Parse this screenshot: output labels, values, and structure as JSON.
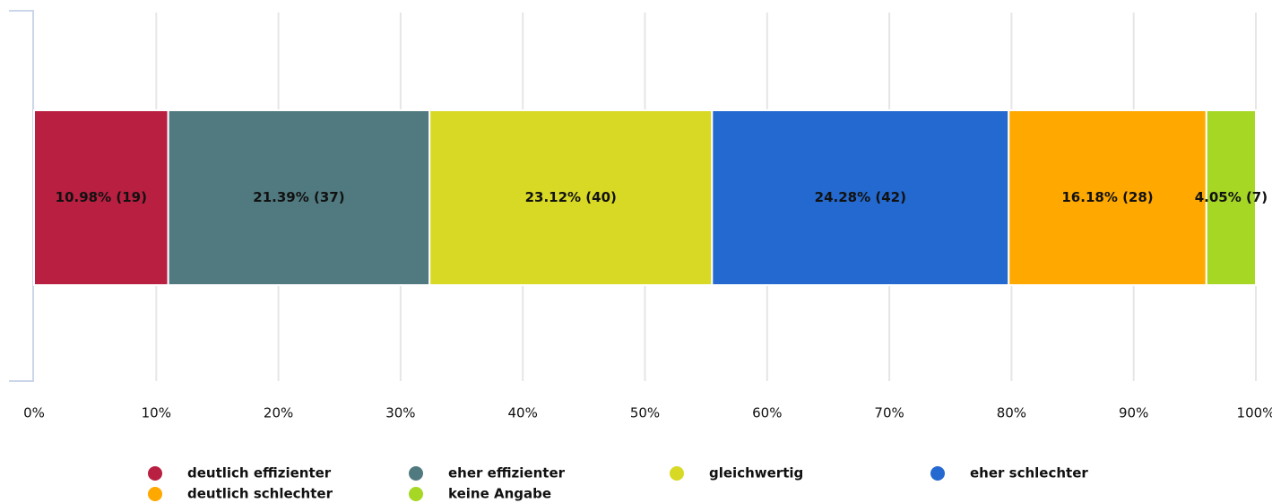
{
  "chart_data": {
    "type": "bar",
    "orientation": "horizontal",
    "stacked": true,
    "series": [
      {
        "name": "deutlich effizienter",
        "color": "#b81f40",
        "values": [
          10.98
        ],
        "value_labels": [
          "10.98% (19)"
        ]
      },
      {
        "name": "eher effizienter",
        "color": "#517a80",
        "values": [
          21.39
        ],
        "value_labels": [
          "21.39% (37)"
        ]
      },
      {
        "name": "gleichwertig",
        "color": "#d8d924",
        "values": [
          23.12
        ],
        "value_labels": [
          "23.12% (40)"
        ]
      },
      {
        "name": "eher schlechter",
        "color": "#2469cf",
        "values": [
          24.28
        ],
        "value_labels": [
          "24.28% (42)"
        ]
      },
      {
        "name": "deutlich schlechter",
        "color": "#fea800",
        "values": [
          16.18
        ],
        "value_labels": [
          "16.18% (28)"
        ]
      },
      {
        "name": "keine Angabe",
        "color": "#a6d725",
        "values": [
          4.05
        ],
        "value_labels": [
          "4.05% (7)"
        ]
      }
    ],
    "xlim": [
      0,
      100
    ],
    "xticks": [
      {
        "value": 0,
        "label": "0%"
      },
      {
        "value": 10,
        "label": "10%"
      },
      {
        "value": 20,
        "label": "20%"
      },
      {
        "value": 30,
        "label": "30%"
      },
      {
        "value": 40,
        "label": "40%"
      },
      {
        "value": 50,
        "label": "50%"
      },
      {
        "value": 60,
        "label": "60%"
      },
      {
        "value": 70,
        "label": "70%"
      },
      {
        "value": 80,
        "label": "80%"
      },
      {
        "value": 90,
        "label": "90%"
      },
      {
        "value": 100,
        "label": "100%"
      }
    ],
    "grid": true,
    "legend": "bottom"
  }
}
